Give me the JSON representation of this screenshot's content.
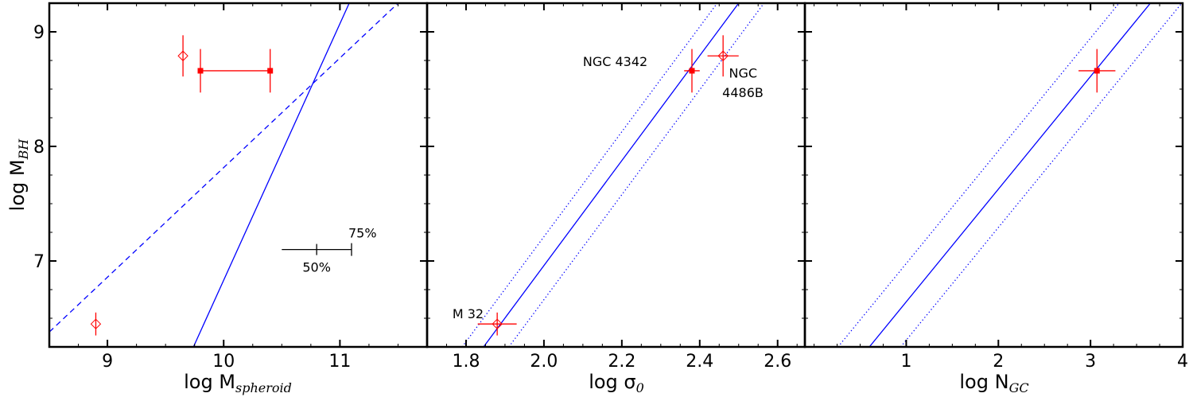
{
  "colors": {
    "data": "#ff0000",
    "fit": "#0000ff",
    "axes": "#000000",
    "scale_bar": "#000000"
  },
  "chart_data": [
    {
      "type": "scatter",
      "xlabel_main": "log M",
      "xlabel_sub": "spheroid",
      "ylabel_main": "log M",
      "ylabel_sub": "BH",
      "xlim": [
        8.5,
        11.75
      ],
      "ylim": [
        6.25,
        9.25
      ],
      "xticks": [
        9,
        10,
        11
      ],
      "xtick_labels": [
        "9",
        "10",
        "11"
      ],
      "yticks": [
        7,
        8,
        9
      ],
      "ytick_labels": [
        "7",
        "8",
        "9"
      ],
      "points": [
        {
          "x": 8.9,
          "y": 6.45,
          "yerr": 0.1,
          "marker": "open-diamond"
        },
        {
          "x": 9.65,
          "y": 8.79,
          "yerr": 0.18,
          "marker": "open-diamond"
        },
        {
          "x": 9.8,
          "y": 8.66,
          "yerr": 0.19,
          "marker": "filled-square"
        },
        {
          "x": 10.4,
          "y": 8.66,
          "yerr": 0.19,
          "marker": "filled-square"
        }
      ],
      "segments": [
        {
          "x1": 9.8,
          "y1": 8.66,
          "x2": 10.4,
          "y2": 8.66
        }
      ],
      "lines": [
        {
          "style": "solid",
          "x1": 9.74,
          "y1": 6.25,
          "x2": 11.08,
          "y2": 9.25
        },
        {
          "style": "dashed",
          "x1": 8.5,
          "y1": 6.38,
          "x2": 11.5,
          "y2": 9.25
        }
      ],
      "scale_bar": {
        "x_start": 10.5,
        "x_mid": 10.8,
        "x_end": 11.1,
        "y": 7.1,
        "label_mid": "50%",
        "label_end": "75%"
      },
      "annotations": []
    },
    {
      "type": "scatter",
      "xlabel_main": "log σ",
      "xlabel_sub": "0",
      "xlim": [
        1.7,
        2.67
      ],
      "ylim": [
        6.25,
        9.25
      ],
      "xticks": [
        1.8,
        2.0,
        2.2,
        2.4,
        2.6
      ],
      "xtick_labels": [
        "1.8",
        "2.0",
        "2.2",
        "2.4",
        "2.6"
      ],
      "yticks": [
        7,
        8,
        9
      ],
      "ytick_labels": [
        "",
        "",
        ""
      ],
      "points": [
        {
          "x": 1.88,
          "y": 6.45,
          "xerr": 0.05,
          "yerr": 0.1,
          "marker": "open-diamond"
        },
        {
          "x": 2.38,
          "y": 8.66,
          "xerr": 0.02,
          "yerr": 0.19,
          "marker": "filled-square"
        },
        {
          "x": 2.46,
          "y": 8.79,
          "xerr": 0.04,
          "yerr": 0.18,
          "marker": "open-diamond"
        }
      ],
      "lines": [
        {
          "style": "solid",
          "x1": 1.845,
          "y1": 6.25,
          "x2": 2.5,
          "y2": 9.25
        },
        {
          "style": "dotted",
          "x1": 1.79,
          "y1": 6.25,
          "x2": 2.445,
          "y2": 9.25
        },
        {
          "style": "dotted",
          "x1": 1.91,
          "y1": 6.25,
          "x2": 2.565,
          "y2": 9.25
        }
      ],
      "annotations": [
        {
          "text": "NGC 4342",
          "x": 2.1,
          "y": 8.7
        },
        {
          "text": "NGC",
          "x": 2.475,
          "y": 8.6
        },
        {
          "text": "4486B",
          "x": 2.458,
          "y": 8.43
        },
        {
          "text": "M 32",
          "x": 1.765,
          "y": 6.5
        }
      ]
    },
    {
      "type": "scatter",
      "xlabel_main": "log N",
      "xlabel_sub": "GC",
      "xlim": [
        -0.1,
        4.0
      ],
      "ylim": [
        6.25,
        9.25
      ],
      "xticks": [
        1,
        2,
        3,
        4
      ],
      "xtick_labels": [
        "1",
        "2",
        "3",
        "4"
      ],
      "yticks": [
        7,
        8,
        9
      ],
      "ytick_labels": [
        "",
        "",
        ""
      ],
      "points": [
        {
          "x": 3.07,
          "y": 8.66,
          "xerr": 0.2,
          "yerr": 0.19,
          "marker": "filled-square"
        }
      ],
      "lines": [
        {
          "style": "solid",
          "x1": 0.6,
          "y1": 6.25,
          "x2": 3.65,
          "y2": 9.25
        },
        {
          "style": "dotted",
          "x1": 0.26,
          "y1": 6.25,
          "x2": 3.31,
          "y2": 9.25
        },
        {
          "style": "dotted",
          "x1": 0.94,
          "y1": 6.25,
          "x2": 3.99,
          "y2": 9.25
        }
      ],
      "annotations": []
    }
  ]
}
